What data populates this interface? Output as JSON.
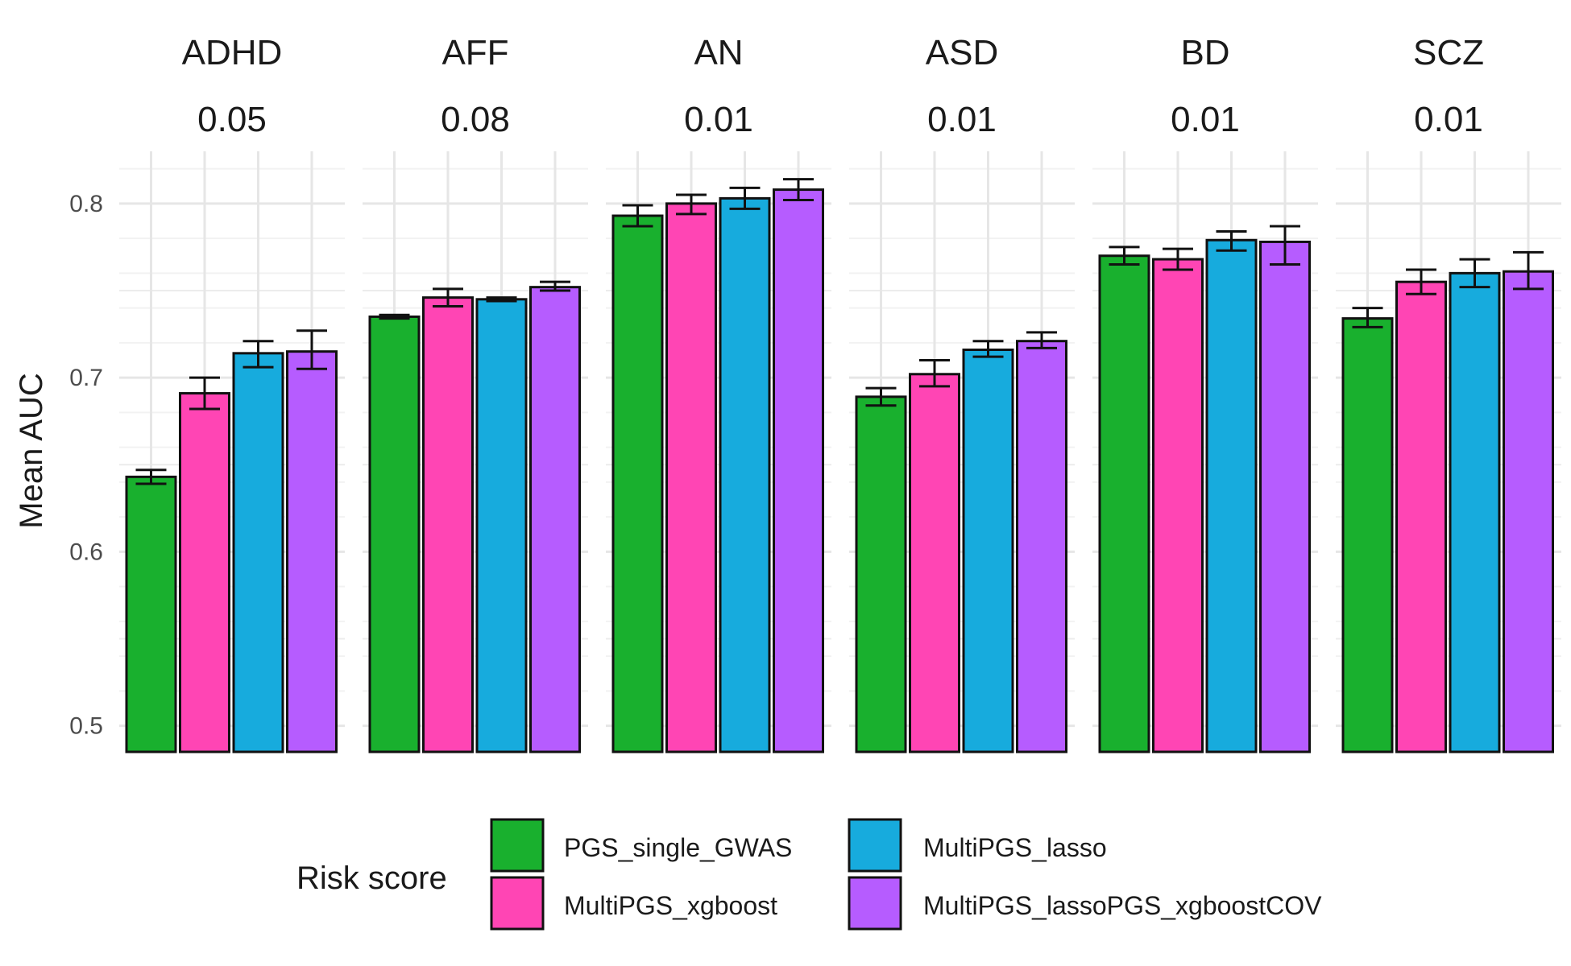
{
  "chart_data": {
    "type": "bar",
    "ylabel": "Mean AUC",
    "xlabel": "",
    "ylim": [
      0.485,
      0.83
    ],
    "yticks": [
      0.5,
      0.6,
      0.7,
      0.8
    ],
    "ytick_labels": [
      "0.5",
      "0.6",
      "0.7",
      "0.8"
    ],
    "grid": true,
    "legend_position": "bottom",
    "legend_title": "Risk score",
    "series": [
      {
        "name": "PGS_single_GWAS",
        "color": "#19b02e"
      },
      {
        "name": "MultiPGS_xgboost",
        "color": "#ff45b4"
      },
      {
        "name": "MultiPGS_lasso",
        "color": "#17abdd"
      },
      {
        "name": "MultiPGS_lassoPGS_xgboostCOV",
        "color": "#b65cff"
      }
    ],
    "facets": [
      {
        "name": "ADHD",
        "subtitle": "0.05",
        "values": [
          0.643,
          0.691,
          0.714,
          0.715
        ],
        "err_low": [
          0.639,
          0.682,
          0.706,
          0.705
        ],
        "err_high": [
          0.647,
          0.7,
          0.721,
          0.727
        ]
      },
      {
        "name": "AFF",
        "subtitle": "0.08",
        "values": [
          0.735,
          0.746,
          0.745,
          0.752
        ],
        "err_low": [
          0.734,
          0.741,
          0.744,
          0.75
        ],
        "err_high": [
          0.736,
          0.751,
          0.746,
          0.755
        ]
      },
      {
        "name": "AN",
        "subtitle": "0.01",
        "values": [
          0.793,
          0.8,
          0.803,
          0.808
        ],
        "err_low": [
          0.787,
          0.794,
          0.797,
          0.802
        ],
        "err_high": [
          0.799,
          0.805,
          0.809,
          0.814
        ]
      },
      {
        "name": "ASD",
        "subtitle": "0.01",
        "values": [
          0.689,
          0.702,
          0.716,
          0.721
        ],
        "err_low": [
          0.684,
          0.695,
          0.712,
          0.717
        ],
        "err_high": [
          0.694,
          0.71,
          0.721,
          0.726
        ]
      },
      {
        "name": "BD",
        "subtitle": "0.01",
        "values": [
          0.77,
          0.768,
          0.779,
          0.778
        ],
        "err_low": [
          0.765,
          0.762,
          0.773,
          0.765
        ],
        "err_high": [
          0.775,
          0.774,
          0.784,
          0.787
        ]
      },
      {
        "name": "SCZ",
        "subtitle": "0.01",
        "values": [
          0.734,
          0.755,
          0.76,
          0.761
        ],
        "err_low": [
          0.729,
          0.748,
          0.752,
          0.751
        ],
        "err_high": [
          0.74,
          0.762,
          0.768,
          0.772
        ]
      }
    ]
  }
}
